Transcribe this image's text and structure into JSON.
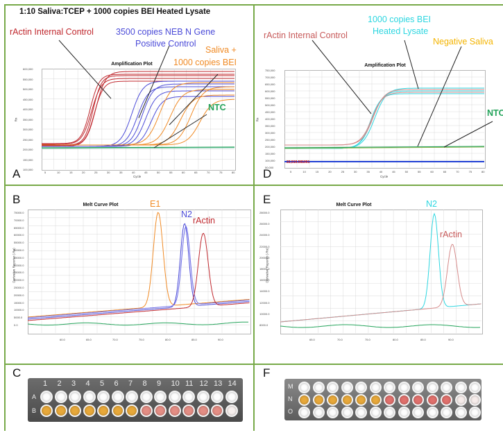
{
  "figure_title": "1:10 Saliva:TCEP + 1000 copies BEI Heated Lysate",
  "panels": {
    "A": {
      "letter": "A",
      "plot_title": "Amplification Plot",
      "x_label": "Cycle",
      "y_label": "Rn",
      "y_ticks": [
        "600,000",
        "550,000",
        "500,000",
        "450,000",
        "400,000",
        "350,000",
        "300,000",
        "250,000",
        "200,000",
        "150,000",
        "100,000"
      ],
      "x_ticks": [
        "5",
        "10",
        "15",
        "20",
        "25",
        "30",
        "35",
        "40",
        "45",
        "50",
        "55",
        "60",
        "65",
        "70",
        "75",
        "80"
      ],
      "annotations": {
        "ractin": "rActin Internal Control",
        "neb_line1": "3500 copies NEB N Gene",
        "neb_line2": "Positive Control",
        "saliva_line1": "Saliva +",
        "saliva_line2": "1000 copies BEI",
        "ntc": "NTC"
      }
    },
    "D": {
      "letter": "D",
      "plot_title": "Amplification Plot",
      "x_label": "Cycle",
      "y_label": "Rn",
      "y_ticks": [
        "750,000",
        "700,000",
        "650,000",
        "600,000",
        "550,000",
        "500,000",
        "450,000",
        "400,000",
        "350,000",
        "300,000",
        "250,000",
        "200,000",
        "150,000",
        "100,000",
        "50,000"
      ],
      "x_ticks": [
        "5",
        "10",
        "15",
        "20",
        "25",
        "30",
        "35",
        "40",
        "45",
        "50",
        "55",
        "60",
        "65",
        "70",
        "75",
        "80"
      ],
      "threshold_label": "23,519.581061",
      "annotations": {
        "ractin": "rActin Internal Control",
        "bei_line1": "1000 copies BEI",
        "bei_line2": "Heated Lysate",
        "neg": "Negative Saliva",
        "ntc": "NTC"
      }
    },
    "B": {
      "letter": "B",
      "plot_title": "Melt Curve Plot",
      "y_label": "Derivative Reporter (-Rn)",
      "y_ticks": [
        "75000.0",
        "70000.0",
        "65000.0",
        "60000.0",
        "55000.0",
        "50000.0",
        "45000.0",
        "40000.0",
        "35000.0",
        "30000.0",
        "25000.0",
        "20000.0",
        "15000.0",
        "10000.0",
        "5000.0",
        "0.0"
      ],
      "x_ticks": [
        "60.0",
        "65.0",
        "70.0",
        "75.0",
        "80.0",
        "85.0",
        "90.0"
      ],
      "annotations": {
        "e1": "E1",
        "n2": "N2",
        "ractin": "rActin"
      }
    },
    "E": {
      "letter": "E",
      "plot_title": "Melt Curve Plot",
      "y_label": "Derivative Reporter (-Rn)",
      "y_ticks": [
        "28000.0",
        "26000.0",
        "24000.0",
        "22000.0",
        "20000.0",
        "18000.0",
        "16000.0",
        "14000.0",
        "12000.0",
        "10000.0",
        "8000.0"
      ],
      "x_ticks": [
        "65.0",
        "70.0",
        "75.0",
        "80.0",
        "85.0",
        "90.0"
      ],
      "annotations": {
        "n2": "N2",
        "ractin": "rActin"
      }
    },
    "C": {
      "letter": "C",
      "columns": [
        "1",
        "2",
        "3",
        "4",
        "5",
        "6",
        "7",
        "8",
        "9",
        "10",
        "11",
        "12",
        "13",
        "14"
      ],
      "rows": [
        "A",
        "B"
      ]
    },
    "F": {
      "letter": "F",
      "rows": [
        "M",
        "N",
        "O"
      ]
    }
  },
  "colors": {
    "border": "#77a948",
    "ractin": "#c0282e",
    "neb": "#4a4ad8",
    "saliva": "#f08a24",
    "ntc": "#23a35a",
    "bei": "#2cd6e0",
    "neg": "#f4b400",
    "threshold": "#1f3fd4"
  }
}
